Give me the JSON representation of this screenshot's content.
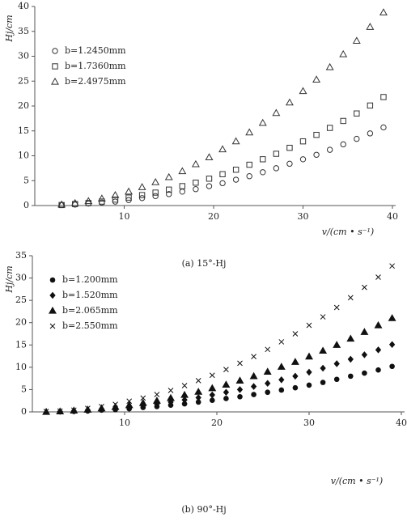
{
  "chart_data": [
    {
      "type": "scatter",
      "caption": "(a) 15°-Hj",
      "x_label": "v/(cm • s⁻¹)",
      "y_label": "Hj/cm",
      "xlim": [
        0,
        40
      ],
      "ylim": [
        0,
        40
      ],
      "xticks": [
        10,
        20,
        30,
        40
      ],
      "yticks": [
        0,
        5,
        10,
        15,
        20,
        25,
        30,
        35,
        40
      ],
      "legend": "upper left",
      "x": [
        3,
        4.5,
        6,
        7.5,
        9,
        10.5,
        12,
        13.5,
        15,
        16.5,
        18,
        19.5,
        21,
        22.5,
        24,
        25.5,
        27,
        28.5,
        30,
        31.5,
        33,
        34.5,
        36,
        37.5,
        39
      ],
      "series": [
        {
          "name": "b=1.2450mm",
          "color": "#333333",
          "marker": "circle-open",
          "values": [
            0.1,
            0.2,
            0.4,
            0.6,
            0.8,
            1.1,
            1.5,
            1.9,
            2.3,
            2.8,
            3.3,
            3.9,
            4.5,
            5.2,
            5.9,
            6.7,
            7.5,
            8.4,
            9.3,
            10.2,
            11.2,
            12.3,
            13.4,
            14.5,
            15.7
          ]
        },
        {
          "name": "b=1.7360mm",
          "color": "#333333",
          "marker": "square-open",
          "values": [
            0.1,
            0.3,
            0.5,
            0.8,
            1.2,
            1.6,
            2.1,
            2.6,
            3.2,
            3.9,
            4.6,
            5.4,
            6.3,
            7.2,
            8.2,
            9.3,
            10.4,
            11.6,
            12.9,
            14.2,
            15.6,
            17.0,
            18.5,
            20.1,
            21.8
          ]
        },
        {
          "name": "b=2.4975mm",
          "color": "#333333",
          "marker": "triangle-open",
          "values": [
            0.2,
            0.5,
            0.9,
            1.4,
            2.1,
            2.8,
            3.7,
            4.7,
            5.7,
            6.9,
            8.3,
            9.7,
            11.3,
            12.9,
            14.7,
            16.6,
            18.6,
            20.7,
            23.0,
            25.3,
            27.8,
            30.4,
            33.1,
            35.9,
            38.8
          ]
        }
      ]
    },
    {
      "type": "scatter",
      "caption": "(b) 90°-Hj",
      "x_label": "v/(cm • s⁻¹)",
      "y_label": "Hj/cm",
      "xlim": [
        0,
        40
      ],
      "ylim": [
        0,
        35
      ],
      "xticks": [
        10,
        20,
        30,
        40
      ],
      "yticks": [
        0,
        5,
        10,
        15,
        20,
        25,
        30,
        35
      ],
      "legend": "upper left",
      "x": [
        1.5,
        3,
        4.5,
        6,
        7.5,
        9,
        10.5,
        12,
        13.5,
        15,
        16.5,
        18,
        19.5,
        21,
        22.5,
        24,
        25.5,
        27,
        28.5,
        30,
        31.5,
        33,
        34.5,
        36,
        37.5,
        39
      ],
      "series": [
        {
          "name": "b=1.200mm",
          "color": "#111111",
          "marker": "circle",
          "values": [
            null,
            null,
            0.1,
            0.2,
            0.4,
            0.5,
            0.7,
            1.0,
            1.2,
            1.5,
            1.8,
            2.2,
            2.6,
            3.0,
            3.4,
            3.9,
            4.4,
            4.9,
            5.4,
            6.0,
            6.6,
            7.3,
            8.0,
            8.7,
            9.4,
            10.2
          ]
        },
        {
          "name": "b=1.520mm",
          "color": "#111111",
          "marker": "diamond",
          "values": [
            null,
            0.1,
            0.2,
            0.4,
            0.6,
            0.8,
            1.1,
            1.4,
            1.8,
            2.2,
            2.7,
            3.2,
            3.8,
            4.4,
            5.0,
            5.7,
            6.4,
            7.2,
            8.0,
            8.9,
            9.8,
            10.8,
            11.8,
            12.8,
            13.9,
            15.1
          ]
        },
        {
          "name": "b=2.065mm",
          "color": "#111111",
          "marker": "triangle",
          "values": [
            0.0,
            0.1,
            0.3,
            0.5,
            0.8,
            1.1,
            1.5,
            2.0,
            2.5,
            3.1,
            3.8,
            4.5,
            5.3,
            6.1,
            7.0,
            8.0,
            9.0,
            10.1,
            11.2,
            12.4,
            13.7,
            15.0,
            16.4,
            17.9,
            19.4,
            21.0
          ]
        },
        {
          "name": "b=2.550mm",
          "color": "#111111",
          "marker": "cross",
          "values": [
            0.1,
            0.2,
            0.4,
            0.8,
            1.2,
            1.7,
            2.4,
            3.1,
            3.9,
            4.8,
            5.9,
            7.0,
            8.2,
            9.5,
            10.9,
            12.4,
            14.0,
            15.7,
            17.5,
            19.4,
            21.3,
            23.4,
            25.6,
            27.9,
            30.2,
            32.7
          ]
        }
      ]
    }
  ]
}
